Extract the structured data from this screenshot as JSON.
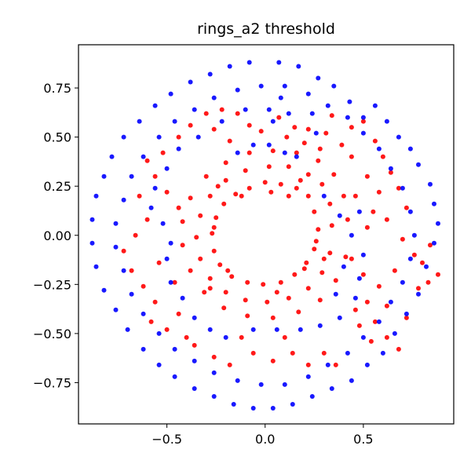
{
  "chart_data": {
    "type": "scatter",
    "title": "rings_a2 threshold",
    "xlabel": "",
    "ylabel": "",
    "xlim": [
      -0.95,
      0.96
    ],
    "ylim": [
      -0.96,
      0.97
    ],
    "xticks": [
      -0.5,
      0.0,
      0.5
    ],
    "xtick_labels": [
      "−0.5",
      "0.0",
      "0.5"
    ],
    "yticks": [
      -0.75,
      -0.5,
      -0.25,
      0.0,
      0.25,
      0.5,
      0.75
    ],
    "ytick_labels": [
      "−0.75",
      "−0.50",
      "−0.25",
      "0.00",
      "0.25",
      "0.50",
      "0.75"
    ],
    "grid": false,
    "legend": false,
    "series": [
      {
        "color": "#ff0000",
        "points": [
          [
            0.27,
            0.03
          ],
          [
            0.25,
            0.12
          ],
          [
            0.22,
            0.2
          ],
          [
            0.16,
            0.24
          ],
          [
            0.08,
            0.26
          ],
          [
            0.0,
            0.27
          ],
          [
            -0.08,
            0.24
          ],
          [
            -0.15,
            0.21
          ],
          [
            -0.21,
            0.16
          ],
          [
            -0.25,
            0.09
          ],
          [
            -0.27,
            0.01
          ],
          [
            -0.26,
            -0.08
          ],
          [
            -0.23,
            -0.15
          ],
          [
            -0.17,
            -0.21
          ],
          [
            -0.09,
            -0.24
          ],
          [
            -0.01,
            -0.25
          ],
          [
            0.08,
            -0.24
          ],
          [
            0.15,
            -0.2
          ],
          [
            0.21,
            -0.14
          ],
          [
            0.25,
            -0.07
          ],
          [
            0.34,
            0.05
          ],
          [
            0.33,
            0.16
          ],
          [
            0.29,
            0.26
          ],
          [
            0.22,
            0.31
          ],
          [
            0.12,
            0.35
          ],
          [
            0.02,
            0.35
          ],
          [
            -0.1,
            0.33
          ],
          [
            -0.2,
            0.28
          ],
          [
            -0.28,
            0.2
          ],
          [
            -0.33,
            0.1
          ],
          [
            -0.35,
            -0.01
          ],
          [
            -0.33,
            -0.12
          ],
          [
            -0.28,
            -0.22
          ],
          [
            -0.2,
            -0.29
          ],
          [
            -0.1,
            -0.33
          ],
          [
            0.01,
            -0.34
          ],
          [
            0.12,
            -0.32
          ],
          [
            0.22,
            -0.27
          ],
          [
            0.29,
            -0.19
          ],
          [
            0.33,
            -0.09
          ],
          [
            0.42,
            0.08
          ],
          [
            0.4,
            0.2
          ],
          [
            0.35,
            0.31
          ],
          [
            0.27,
            0.38
          ],
          [
            0.16,
            0.42
          ],
          [
            0.04,
            0.43
          ],
          [
            -0.08,
            0.42
          ],
          [
            -0.2,
            0.37
          ],
          [
            -0.3,
            0.3
          ],
          [
            -0.38,
            0.19
          ],
          [
            -0.42,
            0.07
          ],
          [
            -0.42,
            -0.05
          ],
          [
            -0.38,
            -0.18
          ],
          [
            -0.31,
            -0.29
          ],
          [
            -0.21,
            -0.37
          ],
          [
            -0.09,
            -0.41
          ],
          [
            0.04,
            -0.42
          ],
          [
            0.17,
            -0.39
          ],
          [
            0.28,
            -0.33
          ],
          [
            0.36,
            -0.23
          ],
          [
            0.41,
            -0.11
          ],
          [
            0.03,
            0.22
          ],
          [
            0.12,
            0.2
          ],
          [
            -0.12,
            0.2
          ],
          [
            0.2,
            -0.17
          ],
          [
            -0.19,
            -0.18
          ],
          [
            0.26,
            -0.03
          ],
          [
            -0.26,
            0.04
          ],
          [
            0.18,
            0.28
          ],
          [
            -0.24,
            0.25
          ],
          [
            0.3,
            -0.12
          ],
          [
            -0.28,
            -0.27
          ],
          [
            0.06,
            -0.29
          ],
          [
            0.15,
            0.55
          ],
          [
            0.22,
            0.54
          ],
          [
            0.31,
            0.52
          ],
          [
            0.39,
            0.46
          ],
          [
            0.44,
            0.55
          ],
          [
            0.5,
            0.58
          ],
          [
            0.07,
            0.6
          ],
          [
            -0.02,
            0.53
          ],
          [
            0.34,
            0.61
          ],
          [
            0.28,
            0.44
          ],
          [
            0.2,
            0.47
          ],
          [
            0.11,
            0.5
          ],
          [
            0.44,
            0.4
          ],
          [
            0.56,
            0.48
          ],
          [
            0.6,
            0.4
          ],
          [
            0.64,
            0.32
          ],
          [
            0.68,
            0.24
          ],
          [
            0.72,
            0.14
          ],
          [
            0.58,
            0.22
          ],
          [
            0.52,
            0.3
          ],
          [
            0.55,
            0.12
          ],
          [
            0.62,
            0.08
          ],
          [
            0.7,
            -0.02
          ],
          [
            0.76,
            -0.1
          ],
          [
            0.8,
            -0.14
          ],
          [
            0.84,
            -0.05
          ],
          [
            0.88,
            -0.2
          ],
          [
            0.83,
            -0.24
          ],
          [
            0.78,
            -0.27
          ],
          [
            0.66,
            -0.18
          ],
          [
            0.58,
            -0.26
          ],
          [
            0.52,
            -0.34
          ],
          [
            0.46,
            -0.38
          ],
          [
            0.56,
            -0.44
          ],
          [
            0.48,
            -0.46
          ],
          [
            0.54,
            -0.54
          ],
          [
            0.62,
            -0.52
          ],
          [
            0.68,
            -0.58
          ],
          [
            0.44,
            -0.12
          ],
          [
            0.5,
            -0.2
          ],
          [
            0.62,
            -0.36
          ],
          [
            0.72,
            -0.42
          ],
          [
            0.46,
            0.2
          ],
          [
            0.52,
            0.04
          ],
          [
            -0.52,
            0.42
          ],
          [
            -0.44,
            0.5
          ],
          [
            -0.38,
            0.56
          ],
          [
            -0.6,
            0.38
          ],
          [
            -0.56,
            0.3
          ],
          [
            -0.64,
            0.2
          ],
          [
            -0.6,
            0.08
          ],
          [
            -0.66,
            0.0
          ],
          [
            -0.72,
            -0.08
          ],
          [
            -0.68,
            -0.18
          ],
          [
            -0.62,
            -0.26
          ],
          [
            -0.56,
            -0.34
          ],
          [
            -0.58,
            -0.44
          ],
          [
            -0.5,
            -0.48
          ],
          [
            -0.44,
            -0.4
          ],
          [
            -0.4,
            -0.52
          ],
          [
            -0.36,
            -0.56
          ],
          [
            -0.5,
            0.22
          ],
          [
            -0.44,
            0.14
          ],
          [
            -0.46,
            -0.24
          ],
          [
            -0.54,
            -0.14
          ],
          [
            -0.3,
            0.62
          ],
          [
            -0.22,
            0.64
          ],
          [
            -0.14,
            0.62
          ],
          [
            -0.08,
            0.56
          ],
          [
            -0.26,
            0.54
          ],
          [
            -0.18,
            0.48
          ],
          [
            -0.26,
            -0.62
          ],
          [
            -0.18,
            -0.66
          ],
          [
            -0.06,
            -0.6
          ],
          [
            0.04,
            -0.64
          ],
          [
            0.14,
            -0.6
          ],
          [
            0.22,
            -0.66
          ],
          [
            0.3,
            -0.6
          ],
          [
            0.36,
            -0.66
          ],
          [
            -0.12,
            -0.52
          ],
          [
            0.1,
            -0.52
          ]
        ]
      },
      {
        "color": "#0000ff",
        "points": [
          [
            0.07,
            0.88
          ],
          [
            0.17,
            0.86
          ],
          [
            0.27,
            0.8
          ],
          [
            0.35,
            0.76
          ],
          [
            0.43,
            0.68
          ],
          [
            0.5,
            0.6
          ],
          [
            0.56,
            0.66
          ],
          [
            0.62,
            0.58
          ],
          [
            0.68,
            0.5
          ],
          [
            0.74,
            0.44
          ],
          [
            0.78,
            0.36
          ],
          [
            0.84,
            0.26
          ],
          [
            0.86,
            0.16
          ],
          [
            0.88,
            0.06
          ],
          [
            0.86,
            -0.04
          ],
          [
            0.82,
            -0.16
          ],
          [
            0.78,
            -0.3
          ],
          [
            0.72,
            -0.4
          ],
          [
            0.66,
            -0.5
          ],
          [
            0.6,
            -0.6
          ],
          [
            0.52,
            -0.66
          ],
          [
            0.44,
            -0.74
          ],
          [
            0.34,
            -0.78
          ],
          [
            0.24,
            -0.82
          ],
          [
            0.14,
            -0.86
          ],
          [
            0.04,
            -0.88
          ],
          [
            -0.06,
            -0.88
          ],
          [
            -0.16,
            -0.86
          ],
          [
            -0.26,
            -0.82
          ],
          [
            -0.36,
            -0.78
          ],
          [
            -0.46,
            -0.72
          ],
          [
            -0.54,
            -0.66
          ],
          [
            -0.62,
            -0.58
          ],
          [
            -0.7,
            -0.48
          ],
          [
            -0.76,
            -0.38
          ],
          [
            -0.82,
            -0.28
          ],
          [
            -0.86,
            -0.16
          ],
          [
            -0.88,
            -0.04
          ],
          [
            -0.88,
            0.08
          ],
          [
            -0.86,
            0.2
          ],
          [
            -0.82,
            0.3
          ],
          [
            -0.78,
            0.4
          ],
          [
            -0.72,
            0.5
          ],
          [
            -0.64,
            0.58
          ],
          [
            -0.56,
            0.66
          ],
          [
            -0.48,
            0.72
          ],
          [
            -0.38,
            0.78
          ],
          [
            -0.28,
            0.82
          ],
          [
            -0.18,
            0.86
          ],
          [
            -0.08,
            0.88
          ],
          [
            0.1,
            0.76
          ],
          [
            0.22,
            0.72
          ],
          [
            0.32,
            0.66
          ],
          [
            0.42,
            0.6
          ],
          [
            0.5,
            0.52
          ],
          [
            0.58,
            0.44
          ],
          [
            0.64,
            0.34
          ],
          [
            0.7,
            0.24
          ],
          [
            0.74,
            0.12
          ],
          [
            0.76,
            0.0
          ],
          [
            0.74,
            -0.12
          ],
          [
            0.7,
            -0.24
          ],
          [
            0.64,
            -0.34
          ],
          [
            0.58,
            -0.44
          ],
          [
            0.5,
            -0.52
          ],
          [
            0.42,
            -0.6
          ],
          [
            0.32,
            -0.66
          ],
          [
            0.22,
            -0.72
          ],
          [
            0.1,
            -0.76
          ],
          [
            -0.02,
            -0.76
          ],
          [
            -0.14,
            -0.74
          ],
          [
            -0.26,
            -0.7
          ],
          [
            -0.36,
            -0.64
          ],
          [
            -0.46,
            -0.58
          ],
          [
            -0.54,
            -0.5
          ],
          [
            -0.62,
            -0.4
          ],
          [
            -0.68,
            -0.3
          ],
          [
            -0.72,
            -0.18
          ],
          [
            -0.76,
            -0.06
          ],
          [
            -0.76,
            0.06
          ],
          [
            -0.72,
            0.18
          ],
          [
            -0.68,
            0.3
          ],
          [
            -0.62,
            0.4
          ],
          [
            -0.54,
            0.5
          ],
          [
            -0.46,
            0.58
          ],
          [
            -0.36,
            0.64
          ],
          [
            -0.26,
            0.7
          ],
          [
            -0.14,
            0.74
          ],
          [
            -0.02,
            0.76
          ],
          [
            0.02,
            0.64
          ],
          [
            0.12,
            0.62
          ],
          [
            -0.1,
            0.64
          ],
          [
            -0.22,
            0.58
          ],
          [
            0.24,
            0.62
          ],
          [
            0.02,
            0.46
          ],
          [
            0.1,
            0.42
          ],
          [
            -0.06,
            0.46
          ],
          [
            -0.14,
            0.42
          ],
          [
            0.16,
            0.4
          ],
          [
            0.08,
            0.7
          ],
          [
            0.04,
            0.58
          ],
          [
            0.26,
            0.52
          ],
          [
            -0.34,
            0.5
          ],
          [
            -0.44,
            0.44
          ],
          [
            -0.5,
            0.34
          ],
          [
            -0.56,
            0.24
          ],
          [
            -0.58,
            0.14
          ],
          [
            -0.52,
            0.06
          ],
          [
            -0.48,
            -0.04
          ],
          [
            -0.5,
            -0.12
          ],
          [
            -0.48,
            -0.24
          ],
          [
            -0.42,
            -0.32
          ],
          [
            -0.36,
            -0.42
          ],
          [
            -0.28,
            -0.48
          ],
          [
            -0.2,
            -0.52
          ],
          [
            -0.06,
            -0.48
          ],
          [
            0.06,
            -0.48
          ],
          [
            0.18,
            -0.48
          ],
          [
            0.28,
            -0.46
          ],
          [
            0.38,
            -0.42
          ],
          [
            0.46,
            -0.32
          ],
          [
            0.48,
            -0.22
          ],
          [
            0.5,
            -0.1
          ],
          [
            0.44,
            0.0
          ],
          [
            0.38,
            0.1
          ],
          [
            0.48,
            0.12
          ],
          [
            0.4,
            -0.16
          ],
          [
            0.36,
            -0.3
          ],
          [
            0.3,
            0.2
          ]
        ]
      }
    ]
  }
}
